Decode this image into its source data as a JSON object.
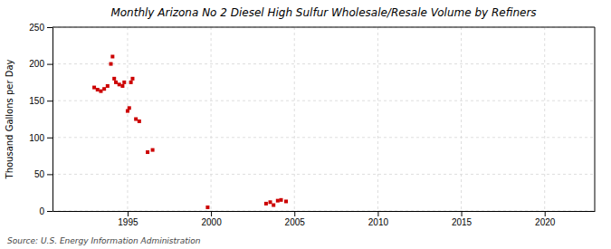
{
  "chart_data": {
    "type": "scatter",
    "title": "Monthly Arizona No 2 Diesel High Sulfur Wholesale/Resale Volume by Refiners",
    "ylabel": "Thousand Gallons per Day",
    "source": "Source: U.S. Energy Information Administration",
    "color": "#cc0000",
    "marker": "square",
    "grid": true,
    "xlim": [
      1990.5,
      2023
    ],
    "ylim": [
      0,
      250
    ],
    "xticks": [
      1995,
      2000,
      2005,
      2010,
      2015,
      2020
    ],
    "yticks": [
      0,
      50,
      100,
      150,
      200,
      250
    ],
    "x": [
      1993.0,
      1993.2,
      1993.4,
      1993.6,
      1993.8,
      1994.0,
      1994.1,
      1994.2,
      1994.3,
      1994.5,
      1994.7,
      1994.8,
      1995.0,
      1995.1,
      1995.2,
      1995.3,
      1995.5,
      1995.7,
      1996.2,
      1996.5,
      1999.8,
      2003.3,
      2003.55,
      2003.75,
      2004.0,
      2004.2,
      2004.5
    ],
    "values": [
      168,
      165,
      163,
      166,
      170,
      200,
      210,
      180,
      175,
      172,
      170,
      175,
      136,
      140,
      175,
      180,
      125,
      122,
      80,
      83,
      5,
      10,
      12,
      8,
      14,
      15,
      13
    ]
  }
}
